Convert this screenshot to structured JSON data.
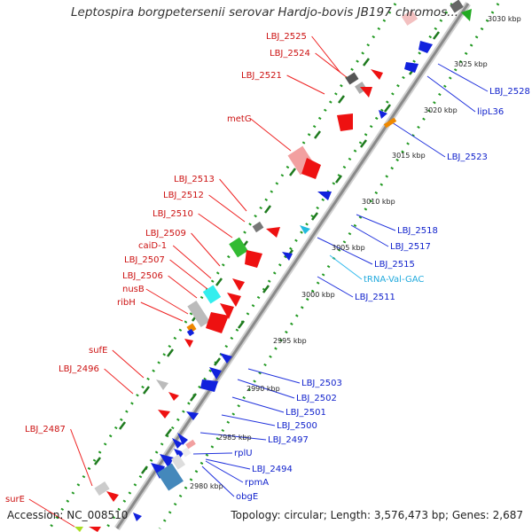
{
  "title": "Leptospira borgpetersenii serovar Hardjo-bovis JB197 chromos...",
  "footer": {
    "accession": "Accession: NC_008510",
    "summary": "Topology: circular; Length: 3,576,473 bp; Genes: 2,687"
  },
  "colors": {
    "forward": "#ee1111",
    "reverse": "#1122dd",
    "trna": "#22bbdd",
    "backbone": "#9a9a9a",
    "dots": "#229922"
  },
  "kbp_labels": [
    "3030 kbp",
    "3025 kbp",
    "3020 kbp",
    "3015 kbp",
    "3010 kbp",
    "3005 kbp",
    "3000 kbp",
    "2995 kbp",
    "2990 kbp",
    "2985 kbp",
    "2980 kbp"
  ],
  "left_labels": [
    "LBJ_2525",
    "LBJ_2524",
    "LBJ_2521",
    "metG",
    "LBJ_2513",
    "LBJ_2512",
    "LBJ_2510",
    "LBJ_2509",
    "caiD-1",
    "LBJ_2507",
    "LBJ_2506",
    "nusB",
    "ribH",
    "sufE",
    "LBJ_2496",
    "LBJ_2487",
    "surE"
  ],
  "right_labels": [
    "LBJ_2528",
    "lipL36",
    "LBJ_2523",
    "LBJ_2518",
    "LBJ_2517",
    "LBJ_2515",
    "tRNA-Val-GAC",
    "LBJ_2511",
    "LBJ_2503",
    "LBJ_2502",
    "LBJ_2501",
    "LBJ_2500",
    "LBJ_2497",
    "rplU",
    "LBJ_2494",
    "rpmA",
    "obgE"
  ]
}
